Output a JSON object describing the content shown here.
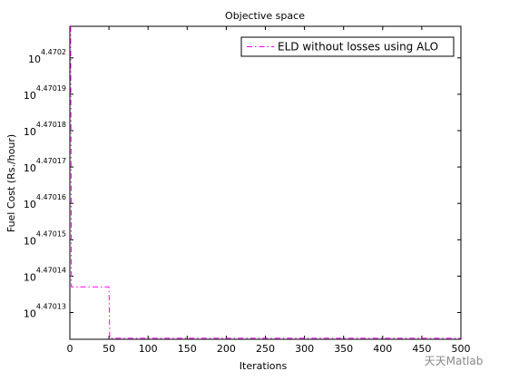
{
  "chart_data": {
    "type": "line",
    "title": "Objective space",
    "xlabel": "Iterations",
    "ylabel": "Fuel Cost (Rs./hour)",
    "yscale": "log",
    "x": [
      1,
      2,
      50,
      51,
      500
    ],
    "series": [
      {
        "name": "ELD without losses using ALO",
        "color": "#ff00ff",
        "linestyle": "dashdot",
        "values": [
          29526.3,
          29521.43,
          29521.43,
          29520.47,
          29520.47
        ]
      }
    ],
    "xlim": [
      0,
      500
    ],
    "xticks": [
      0,
      50,
      100,
      150,
      200,
      250,
      300,
      350,
      400,
      450,
      500
    ],
    "ylim": [
      29520.45,
      29526.3
    ],
    "yticks": [
      {
        "value": 29520.95,
        "label": [
          "10",
          "4.47013"
        ]
      },
      {
        "value": 29521.63,
        "label": [
          "10",
          "4.47014"
        ]
      },
      {
        "value": 29522.31,
        "label": [
          "10",
          "4.47015"
        ]
      },
      {
        "value": 29522.99,
        "label": [
          "10",
          "4.47016"
        ]
      },
      {
        "value": 29523.67,
        "label": [
          "10",
          "4.47017"
        ]
      },
      {
        "value": 29524.35,
        "label": [
          "10",
          "4.47018"
        ]
      },
      {
        "value": 29525.03,
        "label": [
          "10",
          "4.47019"
        ]
      },
      {
        "value": 29525.71,
        "label": [
          "10",
          "4.4702"
        ]
      }
    ],
    "legend": "upper right",
    "watermark": "天天Matlab"
  }
}
